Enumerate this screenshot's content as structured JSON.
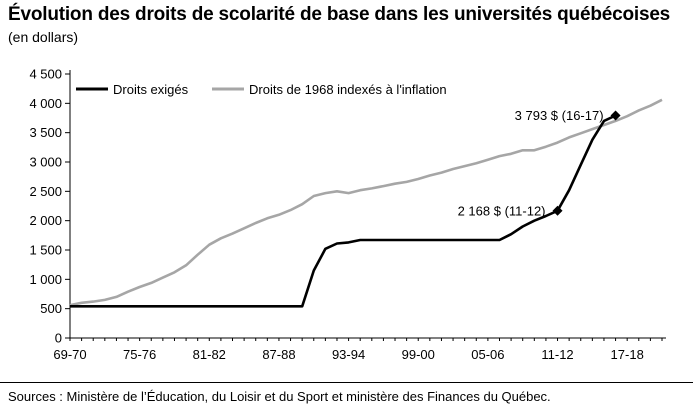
{
  "header": {
    "title": "Évolution des droits de scolarité de base dans les universités québécoises",
    "subtitle": "(en dollars)"
  },
  "footer": {
    "source": "Sources : Ministère de l’Éducation, du Loisir et du Sport et ministère des Finances du Québec."
  },
  "chart_data": {
    "type": "line",
    "title": "Évolution des droits de scolarité de base dans les universités québécoises",
    "subtitle": "(en dollars)",
    "xlabel": "",
    "ylabel": "",
    "x": [
      "69-70",
      "70-71",
      "71-72",
      "72-73",
      "73-74",
      "74-75",
      "75-76",
      "76-77",
      "77-78",
      "78-79",
      "79-80",
      "80-81",
      "81-82",
      "82-83",
      "83-84",
      "84-85",
      "85-86",
      "86-87",
      "87-88",
      "88-89",
      "89-90",
      "90-91",
      "91-92",
      "92-93",
      "93-94",
      "94-95",
      "95-96",
      "96-97",
      "97-98",
      "98-99",
      "99-00",
      "00-01",
      "01-02",
      "02-03",
      "03-04",
      "04-05",
      "05-06",
      "06-07",
      "07-08",
      "08-09",
      "09-10",
      "10-11",
      "11-12",
      "12-13",
      "13-14",
      "14-15",
      "15-16",
      "16-17",
      "17-18",
      "18-19",
      "19-20",
      "20-21"
    ],
    "x_ticks": [
      "69-70",
      "75-76",
      "81-82",
      "87-88",
      "93-94",
      "99-00",
      "05-06",
      "11-12",
      "17-18"
    ],
    "y_ticks": [
      "0",
      "500",
      "1 000",
      "1 500",
      "2 000",
      "2 500",
      "3 000",
      "3 500",
      "4 000",
      "4 500"
    ],
    "ylim": [
      0,
      4500
    ],
    "legend_position": "top-left",
    "grid": false,
    "series": [
      {
        "name": "Droits exigés",
        "color": "#000000",
        "values": [
          540,
          540,
          540,
          540,
          540,
          540,
          540,
          540,
          540,
          540,
          540,
          540,
          540,
          540,
          540,
          540,
          540,
          540,
          540,
          540,
          540,
          1150,
          1520,
          1610,
          1630,
          1670,
          1670,
          1670,
          1670,
          1670,
          1670,
          1670,
          1670,
          1670,
          1670,
          1670,
          1670,
          1670,
          1770,
          1900,
          2000,
          2080,
          2168,
          2520,
          2950,
          3380,
          3700,
          3793,
          null,
          null,
          null,
          null
        ]
      },
      {
        "name": "Droits de 1968 indexés à l'inflation",
        "color": "#a6a6a6",
        "values": [
          560,
          600,
          620,
          650,
          700,
          790,
          870,
          940,
          1030,
          1120,
          1240,
          1420,
          1590,
          1700,
          1780,
          1870,
          1960,
          2040,
          2100,
          2180,
          2280,
          2420,
          2470,
          2500,
          2470,
          2520,
          2550,
          2590,
          2630,
          2660,
          2710,
          2770,
          2820,
          2880,
          2930,
          2980,
          3040,
          3100,
          3140,
          3200,
          3200,
          3260,
          3330,
          3420,
          3490,
          3560,
          3630,
          3700,
          3780,
          3880,
          3960,
          4060
        ]
      }
    ],
    "annotations": [
      {
        "text": "3 793 $ (16-17)",
        "x": "16-17",
        "y": 3793
      },
      {
        "text": "2 168 $ (11-12)",
        "x": "11-12",
        "y": 2168
      }
    ]
  }
}
